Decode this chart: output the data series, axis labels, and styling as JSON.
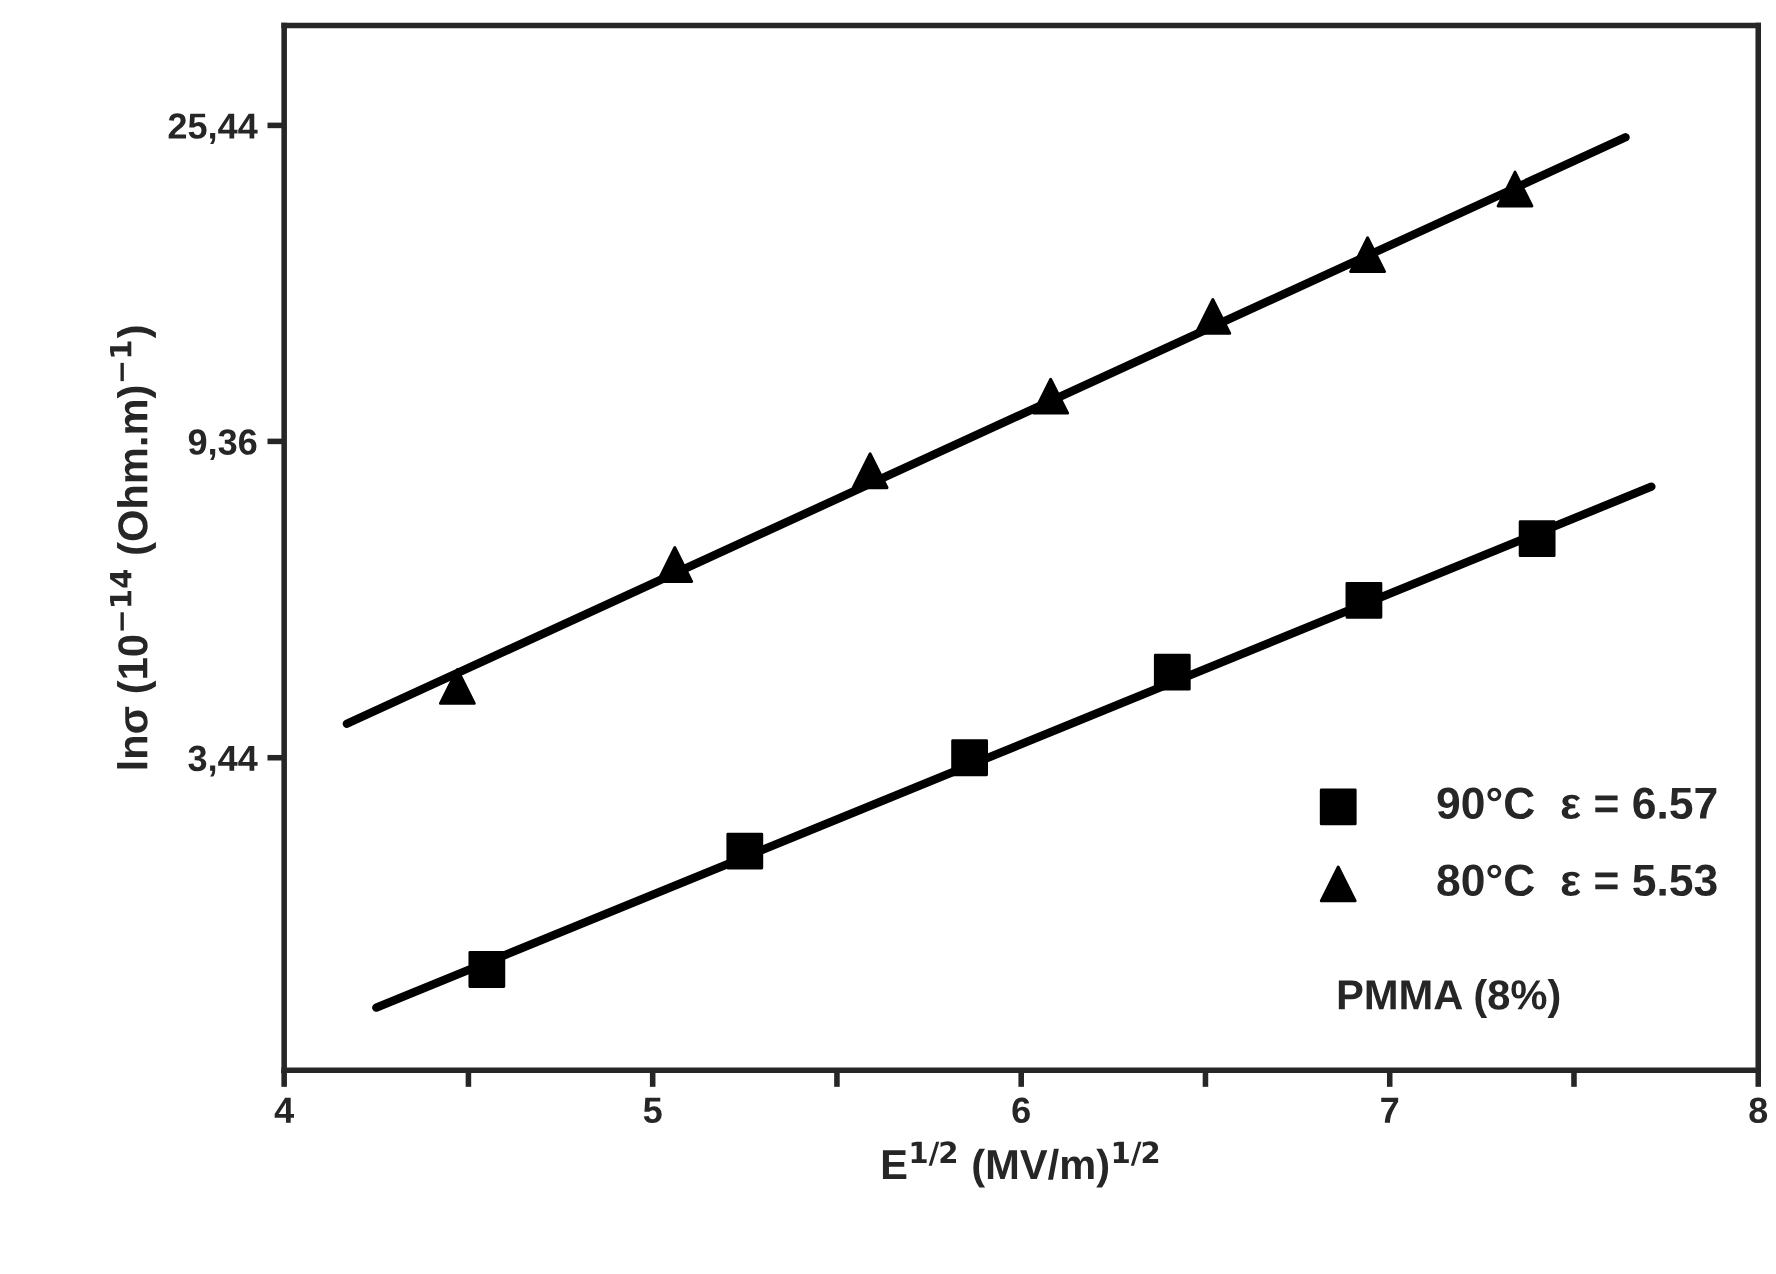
{
  "chart_data": {
    "type": "scatter",
    "xlabel": "E$^{1/2}$ (MV/m)$^{1/2}$",
    "ylabel": "lnσ (10$^{−14}$ (Ohm.m)$^{−1}$)",
    "log": "y",
    "xlim": [
      4,
      8
    ],
    "xticks": [
      4,
      {
        "value": 4.5,
        "label": null
      },
      5,
      {
        "value": 5.5,
        "label": null
      },
      6,
      {
        "value": 6.5,
        "label": null
      },
      7,
      {
        "value": 7.5,
        "label": null
      },
      8
    ],
    "ylim": [
      1.28,
      34.9
    ],
    "yticks": [
      {
        "value": 3.44,
        "label": "3,44"
      },
      {
        "value": 9.36,
        "label": "9,36"
      },
      {
        "value": 25.44,
        "label": "25,44"
      }
    ],
    "grid": false,
    "legend": "bottom right",
    "series": [
      {
        "name": "90°C  ε = 6.57",
        "marker": "square",
        "color": "#000000",
        "x": [
          4.55,
          5.25,
          5.86,
          6.41,
          6.93,
          7.4
        ],
        "values": [
          1.76,
          2.56,
          3.44,
          4.51,
          5.66,
          6.88
        ]
      },
      {
        "name": "80°C  ε = 5.53",
        "marker": "triangle",
        "color": "#000000",
        "x": [
          4.47,
          5.06,
          5.59,
          6.08,
          6.52,
          6.94,
          7.34
        ],
        "values": [
          4.31,
          6.34,
          8.53,
          10.8,
          13.9,
          16.9,
          20.8
        ]
      },
      {
        "type": "line",
        "marker": "none",
        "line_style": "solid",
        "color": "#000000",
        "x": [
          4.25,
          7.71
        ],
        "values": [
          1.56,
          8.11
        ]
      },
      {
        "type": "line",
        "marker": "none",
        "line_style": "solid",
        "color": "#000000",
        "x": [
          4.17,
          7.64
        ],
        "values": [
          3.83,
          24.5
        ]
      }
    ],
    "annotations": [
      "PMMA (8%)"
    ]
  }
}
